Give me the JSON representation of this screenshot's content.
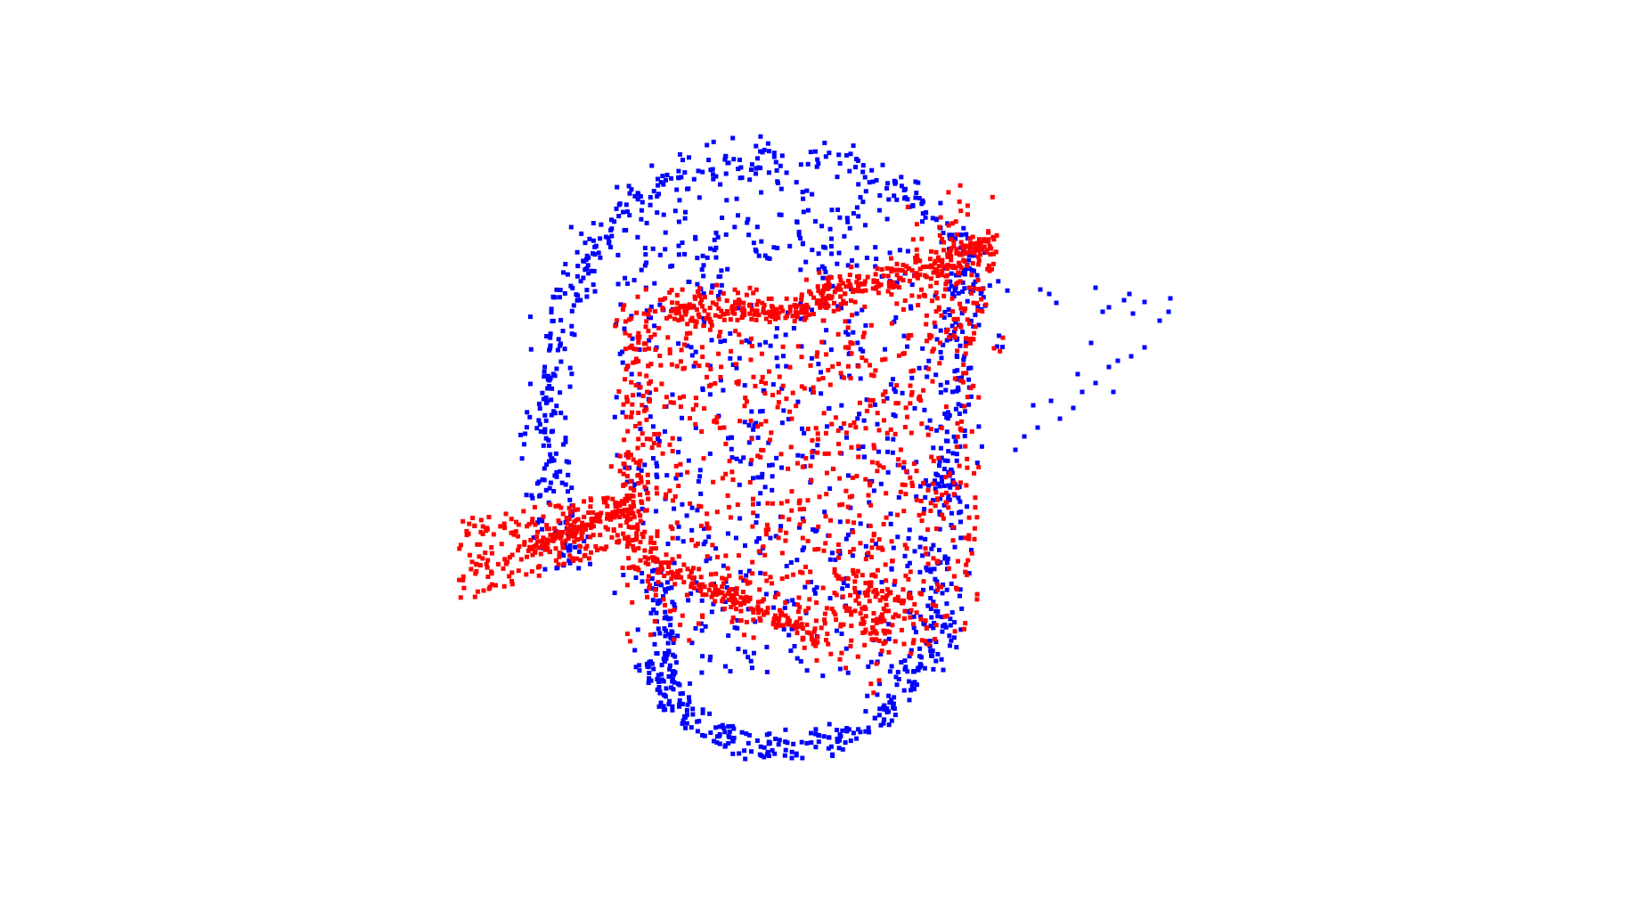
{
  "scene": {
    "background_color": "#ffffff",
    "point_clouds": [
      {
        "role": "target",
        "color": "#0000ff",
        "shape": "head-outline"
      },
      {
        "role": "source",
        "color": "#ff0000",
        "shape": "face-patch"
      }
    ]
  }
}
